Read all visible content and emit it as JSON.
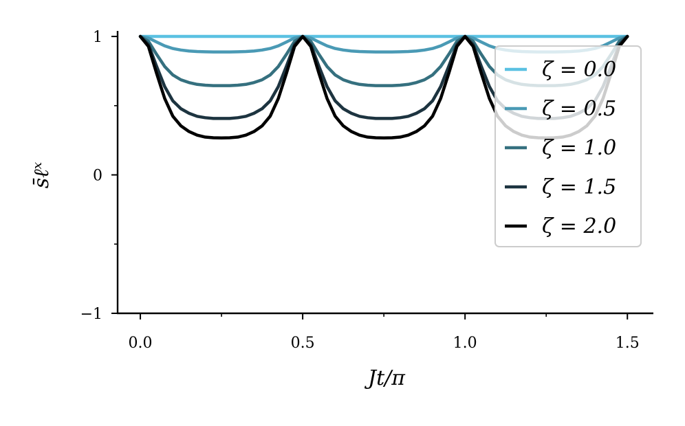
{
  "chart_data": {
    "type": "line",
    "xlabel": "Jt/π",
    "ylabel": "s̄ℓˣ",
    "xlim": [
      -0.07,
      1.58
    ],
    "ylim": [
      -1,
      1.04
    ],
    "xticks": [
      0.0,
      0.5,
      1.0,
      1.5
    ],
    "xtick_labels": [
      "0.0",
      "0.5",
      "1.0",
      "1.5"
    ],
    "xticks_minor": [
      0.25,
      0.75,
      1.25
    ],
    "yticks": [
      -1,
      0,
      1
    ],
    "ytick_labels": [
      "−1",
      "0",
      "1"
    ],
    "yticks_minor": [
      -0.5,
      0.5
    ],
    "grid": false,
    "legend_position": "top-right",
    "x": [
      0.0,
      0.025,
      0.05,
      0.075,
      0.1,
      0.125,
      0.15,
      0.175,
      0.2,
      0.225,
      0.25,
      0.275,
      0.3,
      0.325,
      0.35,
      0.375,
      0.4,
      0.425,
      0.45,
      0.475,
      0.5,
      0.525,
      0.55,
      0.575,
      0.6,
      0.625,
      0.65,
      0.675,
      0.7,
      0.725,
      0.75,
      0.775,
      0.8,
      0.825,
      0.85,
      0.875,
      0.9,
      0.925,
      0.95,
      0.975,
      1.0,
      1.025,
      1.05,
      1.075,
      1.1,
      1.125,
      1.15,
      1.175,
      1.2,
      1.225,
      1.25,
      1.275,
      1.3,
      1.325,
      1.35,
      1.375,
      1.4,
      1.425,
      1.45,
      1.475,
      1.5
    ],
    "series": [
      {
        "name": "ζ = 0.0",
        "color": "#5bc1e2",
        "values": [
          1.0,
          1.0,
          1.0,
          1.0,
          1.0,
          1.0,
          1.0,
          1.0,
          1.0,
          1.0,
          1.0,
          1.0,
          1.0,
          1.0,
          1.0,
          1.0,
          1.0,
          1.0,
          1.0,
          1.0,
          1.0,
          1.0,
          1.0,
          1.0,
          1.0,
          1.0,
          1.0,
          1.0,
          1.0,
          1.0,
          1.0,
          1.0,
          1.0,
          1.0,
          1.0,
          1.0,
          1.0,
          1.0,
          1.0,
          1.0,
          1.0,
          1.0,
          1.0,
          1.0,
          1.0,
          1.0,
          1.0,
          1.0,
          1.0,
          1.0,
          1.0,
          1.0,
          1.0,
          1.0,
          1.0,
          1.0,
          1.0,
          1.0,
          1.0,
          1.0,
          1.0
        ]
      },
      {
        "name": "ζ = 0.5",
        "color": "#4a9ab5",
        "values": [
          1.0,
          0.989,
          0.96,
          0.932,
          0.913,
          0.902,
          0.895,
          0.891,
          0.889,
          0.888,
          0.888,
          0.888,
          0.889,
          0.891,
          0.895,
          0.902,
          0.913,
          0.932,
          0.96,
          0.989,
          1.0,
          0.989,
          0.96,
          0.932,
          0.913,
          0.902,
          0.895,
          0.891,
          0.889,
          0.888,
          0.888,
          0.888,
          0.889,
          0.891,
          0.895,
          0.902,
          0.913,
          0.932,
          0.96,
          0.989,
          1.0,
          0.989,
          0.96,
          0.932,
          0.913,
          0.902,
          0.895,
          0.891,
          0.889,
          0.888,
          0.888,
          0.888,
          0.889,
          0.891,
          0.895,
          0.902,
          0.913,
          0.932,
          0.96,
          0.989,
          1.0
        ]
      },
      {
        "name": "ζ = 1.0",
        "color": "#35707f",
        "values": [
          1.0,
          0.965,
          0.871,
          0.783,
          0.722,
          0.687,
          0.667,
          0.654,
          0.648,
          0.645,
          0.645,
          0.645,
          0.648,
          0.654,
          0.667,
          0.687,
          0.722,
          0.783,
          0.871,
          0.965,
          1.0,
          0.965,
          0.871,
          0.783,
          0.722,
          0.687,
          0.667,
          0.654,
          0.648,
          0.645,
          0.645,
          0.645,
          0.648,
          0.654,
          0.667,
          0.687,
          0.722,
          0.783,
          0.871,
          0.965,
          1.0,
          0.965,
          0.871,
          0.783,
          0.722,
          0.687,
          0.667,
          0.654,
          0.648,
          0.645,
          0.645,
          0.645,
          0.648,
          0.654,
          0.667,
          0.687,
          0.722,
          0.783,
          0.871,
          0.965,
          1.0
        ]
      },
      {
        "name": "ζ = 1.5",
        "color": "#1d3440",
        "values": [
          1.0,
          0.942,
          0.785,
          0.638,
          0.535,
          0.478,
          0.445,
          0.423,
          0.413,
          0.408,
          0.408,
          0.408,
          0.413,
          0.423,
          0.445,
          0.478,
          0.535,
          0.638,
          0.785,
          0.942,
          1.0,
          0.942,
          0.785,
          0.638,
          0.535,
          0.478,
          0.445,
          0.423,
          0.413,
          0.408,
          0.408,
          0.408,
          0.413,
          0.423,
          0.445,
          0.478,
          0.535,
          0.638,
          0.785,
          0.942,
          1.0,
          0.942,
          0.785,
          0.638,
          0.535,
          0.478,
          0.445,
          0.423,
          0.413,
          0.408,
          0.408,
          0.408,
          0.413,
          0.423,
          0.445,
          0.478,
          0.535,
          0.638,
          0.785,
          0.942,
          1.0
        ]
      },
      {
        "name": "ζ = 2.0",
        "color": "#000000",
        "values": [
          1.0,
          0.928,
          0.734,
          0.552,
          0.424,
          0.354,
          0.313,
          0.287,
          0.273,
          0.268,
          0.267,
          0.268,
          0.273,
          0.287,
          0.313,
          0.354,
          0.424,
          0.552,
          0.734,
          0.928,
          1.0,
          0.928,
          0.734,
          0.552,
          0.424,
          0.354,
          0.313,
          0.287,
          0.273,
          0.268,
          0.267,
          0.268,
          0.273,
          0.287,
          0.313,
          0.354,
          0.424,
          0.552,
          0.734,
          0.928,
          1.0,
          0.928,
          0.734,
          0.552,
          0.424,
          0.354,
          0.313,
          0.287,
          0.273,
          0.268,
          0.267,
          0.268,
          0.273,
          0.287,
          0.313,
          0.354,
          0.424,
          0.552,
          0.734,
          0.928,
          1.0
        ]
      }
    ]
  }
}
